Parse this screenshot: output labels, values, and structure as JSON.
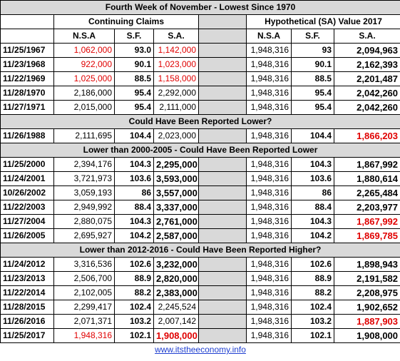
{
  "title": "Fourth Week of November - Lowest Since 1970",
  "headers": {
    "left": "Continuing Claims",
    "right": "Hypothetical (SA) Value 2017",
    "columns": [
      "N.S.A",
      "S.F.",
      "S.A.",
      "N.S.A",
      "S.F.",
      "S.A."
    ]
  },
  "groups": [
    {
      "rows": [
        [
          "11/25/1967",
          "1,062,000",
          "93.0",
          "1,142,000",
          "1,948,316",
          "93",
          "2,094,963"
        ],
        [
          "11/23/1968",
          "922,000",
          "90.1",
          "1,023,000",
          "1,948,316",
          "90.1",
          "2,162,393"
        ],
        [
          "11/22/1969",
          "1,025,000",
          "88.5",
          "1,158,000",
          "1,948,316",
          "88.5",
          "2,201,487"
        ],
        [
          "11/28/1970",
          "2,186,000",
          "95.4",
          "2,292,000",
          "1,948,316",
          "95.4",
          "2,042,260"
        ],
        [
          "11/27/1971",
          "2,015,000",
          "95.4",
          "2,111,000",
          "1,948,316",
          "95.4",
          "2,042,260"
        ]
      ]
    },
    {
      "label": "Could Have Been Reported Lower?",
      "rows": [
        [
          "11/26/1988",
          "2,111,695",
          "104.4",
          "2,023,000",
          "1,948,316",
          "104.4",
          "1,866,203"
        ]
      ]
    },
    {
      "label": "Lower than 2000-2005 - Could Have Been Reported Lower",
      "rows": [
        [
          "11/25/2000",
          "2,394,176",
          "104.3",
          "2,295,000",
          "1,948,316",
          "104.3",
          "1,867,992"
        ],
        [
          "11/24/2001",
          "3,721,973",
          "103.6",
          "3,593,000",
          "1,948,316",
          "103.6",
          "1,880,614"
        ],
        [
          "10/26/2002",
          "3,059,193",
          "86",
          "3,557,000",
          "1,948,316",
          "86",
          "2,265,484"
        ],
        [
          "11/22/2003",
          "2,949,992",
          "88.4",
          "3,337,000",
          "1,948,316",
          "88.4",
          "2,203,977"
        ],
        [
          "11/27/2004",
          "2,880,075",
          "104.3",
          "2,761,000",
          "1,948,316",
          "104.3",
          "1,867,992"
        ],
        [
          "11/26/2005",
          "2,695,927",
          "104.2",
          "2,587,000",
          "1,948,316",
          "104.2",
          "1,869,785"
        ]
      ]
    },
    {
      "label": "Lower than 2012-2016 - Could Have Been Reported Higher?",
      "rows": [
        [
          "11/24/2012",
          "3,316,536",
          "102.6",
          "3,232,000",
          "1,948,316",
          "102.6",
          "1,898,943"
        ],
        [
          "11/23/2013",
          "2,506,700",
          "88.9",
          "2,820,000",
          "1,948,316",
          "88.9",
          "2,191,582"
        ],
        [
          "11/22/2014",
          "2,102,005",
          "88.2",
          "2,383,000",
          "1,948,316",
          "88.2",
          "2,208,975"
        ],
        [
          "11/28/2015",
          "2,299,417",
          "102.4",
          "2,245,524",
          "1,948,316",
          "102.4",
          "1,902,652"
        ],
        [
          "11/26/2016",
          "2,071,371",
          "103.2",
          "2,007,142",
          "1,948,316",
          "103.2",
          "1,887,903"
        ],
        [
          "11/25/2017",
          "1,948,316",
          "102.1",
          "1,908,000",
          "1,948,316",
          "102.1",
          "1,908,000"
        ]
      ]
    }
  ],
  "footer": "www.itstheeconomy.info"
}
